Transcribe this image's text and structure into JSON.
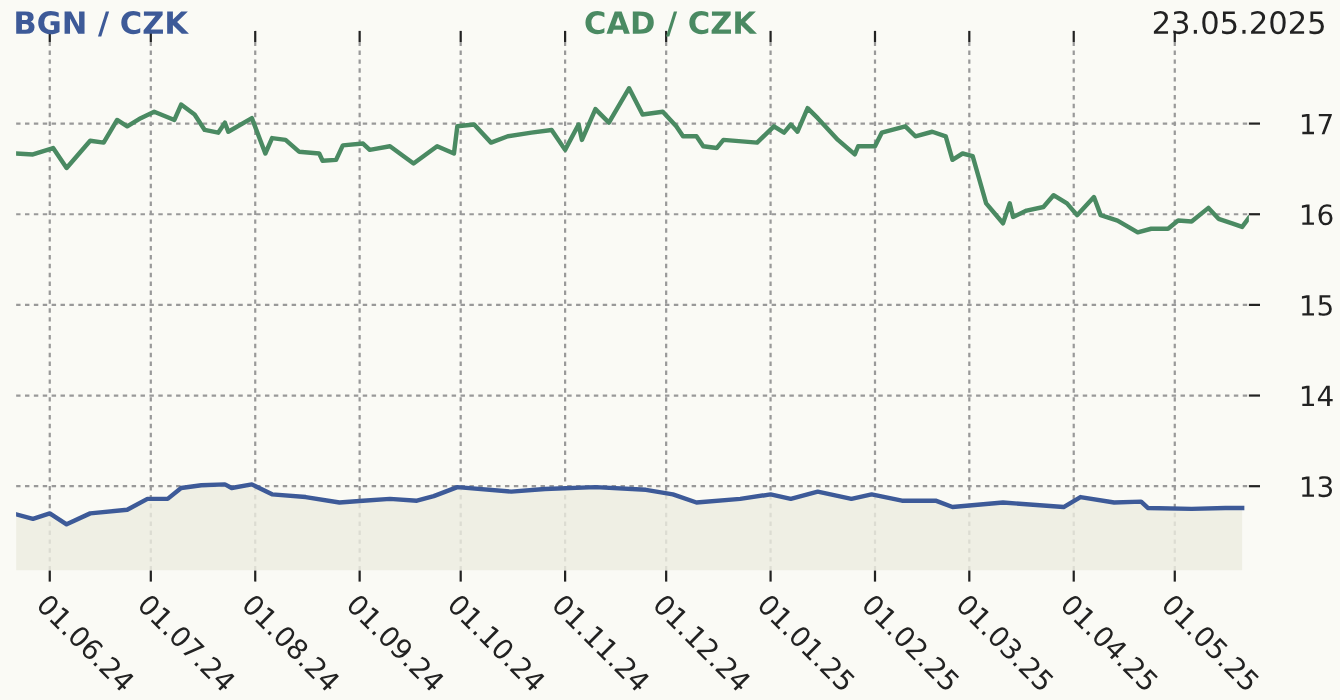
{
  "chart_data": {
    "type": "line",
    "legend": "top",
    "grid": true,
    "annotations": [
      "23.05.2025"
    ],
    "xlim": [
      "2024-05-22",
      "2025-05-23"
    ],
    "ylim": [
      12.07,
      17.9
    ],
    "yticks": [
      13,
      14,
      15,
      16,
      17
    ],
    "xticks": [
      {
        "value": "2024-06-01",
        "label": "01.06.24"
      },
      {
        "value": "2024-07-01",
        "label": "01.07.24"
      },
      {
        "value": "2024-08-01",
        "label": "01.08.24"
      },
      {
        "value": "2024-09-01",
        "label": "01.09.24"
      },
      {
        "value": "2024-10-01",
        "label": "01.10.24"
      },
      {
        "value": "2024-11-01",
        "label": "01.11.24"
      },
      {
        "value": "2024-12-01",
        "label": "01.12.24"
      },
      {
        "value": "2025-01-01",
        "label": "01.01.25"
      },
      {
        "value": "2025-02-01",
        "label": "01.02.25"
      },
      {
        "value": "2025-03-01",
        "label": "01.03.25"
      },
      {
        "value": "2025-04-01",
        "label": "01.04.25"
      },
      {
        "value": "2025-05-01",
        "label": "01.05.25"
      }
    ],
    "series": [
      {
        "name": "BGN / CZK",
        "type": "area",
        "color": "#3d5a98",
        "x": [
          "2024-05-22",
          "2024-05-27",
          "2024-06-01",
          "2024-06-06",
          "2024-06-13",
          "2024-06-24",
          "2024-06-30",
          "2024-07-06",
          "2024-07-10",
          "2024-07-16",
          "2024-07-23",
          "2024-07-25",
          "2024-07-31",
          "2024-08-06",
          "2024-08-16",
          "2024-08-26",
          "2024-09-02",
          "2024-09-10",
          "2024-09-18",
          "2024-09-23",
          "2024-09-30",
          "2024-10-16",
          "2024-10-26",
          "2024-11-10",
          "2024-11-25",
          "2024-12-03",
          "2024-12-10",
          "2024-12-23",
          "2025-01-01",
          "2025-01-07",
          "2025-01-15",
          "2025-01-25",
          "2025-01-31",
          "2025-02-09",
          "2025-02-19",
          "2025-02-24",
          "2025-03-11",
          "2025-03-29",
          "2025-04-03",
          "2025-04-13",
          "2025-04-21",
          "2025-04-23",
          "2025-05-06",
          "2025-05-16",
          "2025-05-21"
        ],
        "values": [
          12.69,
          12.64,
          12.7,
          12.58,
          12.7,
          12.74,
          12.86,
          12.86,
          12.98,
          13.01,
          13.02,
          12.98,
          13.02,
          12.91,
          12.88,
          12.82,
          12.84,
          12.86,
          12.84,
          12.89,
          12.99,
          12.94,
          12.97,
          12.99,
          12.96,
          12.91,
          12.82,
          12.86,
          12.91,
          12.86,
          12.94,
          12.86,
          12.91,
          12.84,
          12.84,
          12.77,
          12.82,
          12.77,
          12.88,
          12.82,
          12.83,
          12.76,
          12.75,
          12.76,
          12.76
        ]
      },
      {
        "name": "CAD / CZK",
        "color": "#4a8a62",
        "x": [
          "2024-05-22",
          "2024-05-27",
          "2024-06-02",
          "2024-06-06",
          "2024-06-13",
          "2024-06-17",
          "2024-06-21",
          "2024-06-24",
          "2024-06-28",
          "2024-07-02",
          "2024-07-08",
          "2024-07-10",
          "2024-07-14",
          "2024-07-17",
          "2024-07-21",
          "2024-07-23",
          "2024-07-24",
          "2024-07-31",
          "2024-08-04",
          "2024-08-06",
          "2024-08-10",
          "2024-08-14",
          "2024-08-20",
          "2024-08-21",
          "2024-08-25",
          "2024-08-27",
          "2024-09-02",
          "2024-09-04",
          "2024-09-10",
          "2024-09-17",
          "2024-09-24",
          "2024-09-29",
          "2024-09-30",
          "2024-10-05",
          "2024-10-10",
          "2024-10-15",
          "2024-10-22",
          "2024-10-28",
          "2024-11-01",
          "2024-11-05",
          "2024-11-06",
          "2024-11-10",
          "2024-11-14",
          "2024-11-20",
          "2024-11-24",
          "2024-11-30",
          "2024-12-04",
          "2024-12-06",
          "2024-12-10",
          "2024-12-12",
          "2024-12-16",
          "2024-12-18",
          "2024-12-28",
          "2025-01-02",
          "2025-01-05",
          "2025-01-07",
          "2025-01-09",
          "2025-01-12",
          "2025-01-15",
          "2025-01-21",
          "2025-01-26",
          "2025-01-27",
          "2025-02-01",
          "2025-02-03",
          "2025-02-10",
          "2025-02-13",
          "2025-02-18",
          "2025-02-22",
          "2025-02-24",
          "2025-02-27",
          "2025-03-02",
          "2025-03-06",
          "2025-03-11",
          "2025-03-13",
          "2025-03-14",
          "2025-03-18",
          "2025-03-23",
          "2025-03-26",
          "2025-03-30",
          "2025-04-02",
          "2025-04-07",
          "2025-04-09",
          "2025-04-14",
          "2025-04-20",
          "2025-04-24",
          "2025-04-29",
          "2025-05-02",
          "2025-05-06",
          "2025-05-11",
          "2025-05-14",
          "2025-05-18",
          "2025-05-21",
          "2025-05-23"
        ],
        "values": [
          16.67,
          16.66,
          16.73,
          16.51,
          16.81,
          16.79,
          17.04,
          16.97,
          17.06,
          17.13,
          17.04,
          17.21,
          17.1,
          16.93,
          16.9,
          17.01,
          16.91,
          17.06,
          16.67,
          16.84,
          16.82,
          16.69,
          16.67,
          16.59,
          16.6,
          16.76,
          16.78,
          16.71,
          16.75,
          16.56,
          16.75,
          16.67,
          16.97,
          16.99,
          16.79,
          16.86,
          16.9,
          16.93,
          16.71,
          16.99,
          16.82,
          17.16,
          17.01,
          17.39,
          17.1,
          17.13,
          16.97,
          16.86,
          16.86,
          16.75,
          16.73,
          16.82,
          16.79,
          16.97,
          16.9,
          16.99,
          16.91,
          17.17,
          17.06,
          16.82,
          16.66,
          16.75,
          16.75,
          16.9,
          16.97,
          16.86,
          16.91,
          16.86,
          16.6,
          16.67,
          16.64,
          16.12,
          15.9,
          16.12,
          15.97,
          16.04,
          16.08,
          16.21,
          16.12,
          15.99,
          16.19,
          15.99,
          15.93,
          15.8,
          15.84,
          15.84,
          15.93,
          15.92,
          16.07,
          15.95,
          15.9,
          15.86,
          15.96
        ]
      }
    ]
  }
}
